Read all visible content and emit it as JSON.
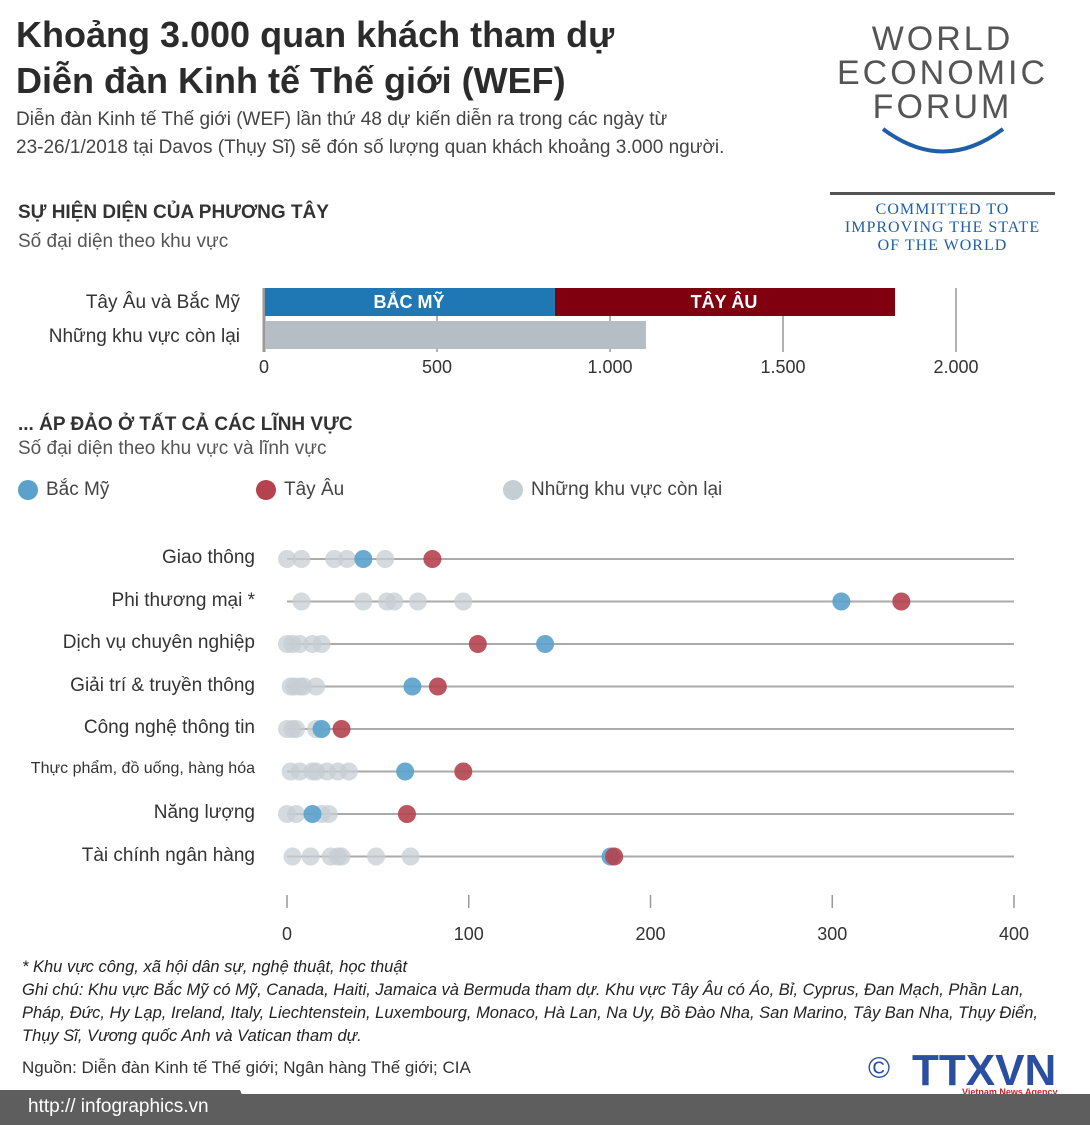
{
  "header": {
    "title_line1": "Khoảng 3.000 quan khách tham dự",
    "title_line2": "Diễn đàn Kinh tế Thế giới (WEF)",
    "intro_line1": "Diễn đàn Kinh tế Thế giới (WEF) lần thứ 48 dự kiến diễn ra trong các ngày từ",
    "intro_line2": "23-26/1/2018 tại Davos (Thụy Sĩ) sẽ đón số lượng quan khách khoảng 3.000 người."
  },
  "logo": {
    "line1": "WORLD",
    "line2": "ECONOMIC",
    "line3": "FORUM",
    "tagline1": "COMMITTED TO",
    "tagline2": "IMPROVING THE STATE",
    "tagline3": "OF THE WORLD"
  },
  "colors": {
    "north_america": "#1f78b4",
    "western_europe": "#800010",
    "rest": "#b4bec4",
    "dot_na": "#5aa1cc",
    "dot_we": "#b4424f",
    "dot_rest": "#c5ced3"
  },
  "chart_data": [
    {
      "type": "bar",
      "stacked": true,
      "orientation": "horizontal",
      "title": "SỰ HIỆN DIỆN CỦA PHƯƠNG TÂY",
      "subtitle": "Số đại diện theo khu vực",
      "categories": [
        "Tây Âu và Bắc Mỹ",
        "Những khu vực còn lại"
      ],
      "series": [
        {
          "name": "BẮC MỸ",
          "values": [
            838,
            0
          ]
        },
        {
          "name": "TÂY ÂU",
          "values": [
            983,
            0
          ]
        },
        {
          "name": "",
          "values": [
            0,
            1101
          ]
        }
      ],
      "xlim": [
        0,
        2000
      ],
      "ticks": [
        "0",
        "500",
        "1.000",
        "1.500",
        "2.000"
      ],
      "grid": true
    },
    {
      "type": "scatter",
      "title": "... ÁP ĐẢO Ở TẤT CẢ CÁC LĨNH VỰC",
      "subtitle": "Số đại diện theo khu vực và lĩnh vực",
      "legend": [
        "Bắc Mỹ",
        "Tây Âu",
        "Những khu vực còn lại"
      ],
      "legend_position": "top",
      "categories": [
        "Giao thông",
        "Phi thương mại *",
        "Dịch vụ chuyên nghiệp",
        "Giải trí & truyền thông",
        "Công nghệ thông tin",
        "Thực phẩm, đồ uống, hàng hóa",
        "Năng lượng",
        "Tài chính ngân hàng"
      ],
      "north_america": [
        42,
        305,
        142,
        69,
        19,
        65,
        14,
        178
      ],
      "western_europe": [
        80,
        338,
        105,
        83,
        30,
        97,
        66,
        180
      ],
      "rest": [
        [
          0,
          8,
          26,
          33,
          54
        ],
        [
          8,
          42,
          55,
          59,
          72,
          97
        ],
        [
          0,
          3,
          7,
          14,
          19
        ],
        [
          2,
          4,
          7,
          9,
          16
        ],
        [
          0,
          3,
          5,
          16
        ],
        [
          2,
          7,
          14,
          16,
          22,
          28,
          34
        ],
        [
          0,
          5,
          19,
          23
        ],
        [
          3,
          13,
          24,
          28,
          30,
          49,
          68
        ]
      ],
      "xlim": [
        0,
        400
      ],
      "ticks": [
        "0",
        "100",
        "200",
        "300",
        "400"
      ],
      "grid": true
    }
  ],
  "notes": {
    "asterisk": "* Khu vực công, xã hội dân sự, nghệ thuật, học thuật",
    "note": "Ghi chú: Khu vực Bắc Mỹ có Mỹ, Canada, Haiti, Jamaica và Bermuda tham dự. Khu vực Tây Âu có Áo, Bỉ, Cyprus, Đan Mạch, Phần Lan, Pháp, Đức, Hy Lạp, Ireland, Italy, Liechtenstein, Luxembourg, Monaco, Hà Lan, Na Uy, Bồ Đào Nha, San Marino, Tây Ban Nha, Thụy Điển, Thụy Sĩ, Vương quốc Anh và Vatican tham dự.",
    "source": "Nguồn: Diễn đàn Kinh tế Thế giới; Ngân hàng Thế giới; CIA"
  },
  "footer": {
    "url": "http:// infographics.vn",
    "agency": "TTXVN",
    "agency_sub": "Vietnam News Agency",
    "copyright": "©"
  }
}
